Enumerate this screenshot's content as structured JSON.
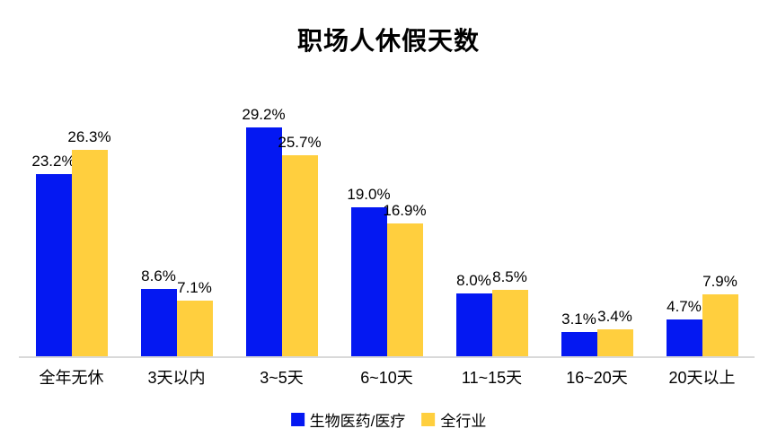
{
  "title": "职场人休假天数",
  "colors": {
    "biopharma_blue": "#0418F2",
    "all_industry_yellow": "#FFCF3E",
    "axis_line": "#D9D9D9",
    "text": "#000000"
  },
  "chart_data": {
    "type": "bar",
    "title": "职场人休假天数",
    "categories": [
      "全年无休",
      "3天以内",
      "3~5天",
      "6~10天",
      "11~15天",
      "16~20天",
      "20天以上"
    ],
    "series": [
      {
        "name": "生物医药/医疗",
        "color": "#0418F2",
        "values": [
          23.2,
          8.6,
          29.2,
          19.0,
          8.0,
          3.1,
          4.7
        ]
      },
      {
        "name": "全行业",
        "color": "#FFCF3E",
        "values": [
          26.3,
          7.1,
          25.7,
          16.9,
          8.5,
          3.4,
          7.9
        ]
      }
    ],
    "data_labels": [
      "23.2%",
      "8.6%",
      "29.2%",
      "19.0%",
      "8.0%",
      "3.1%",
      "4.7%",
      "26.3%",
      "7.1%",
      "25.7%",
      "16.9%",
      "8.5%",
      "3.4%",
      "7.9%"
    ],
    "value_suffix": "%",
    "ylim": [
      0,
      30
    ],
    "grid": false,
    "legend_position": "bottom",
    "xlabel": "",
    "ylabel": ""
  }
}
